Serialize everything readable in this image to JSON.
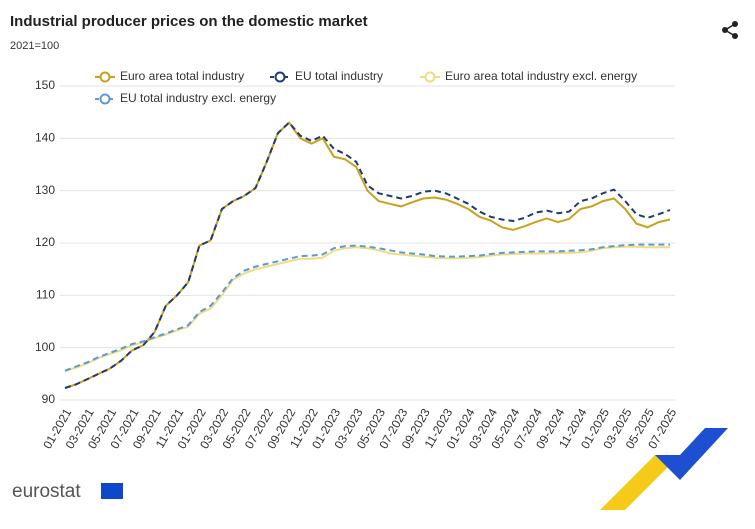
{
  "chart_data": {
    "type": "line",
    "title": "Industrial producer prices on the domestic market",
    "subtitle": "2021=100",
    "logo": "eurostat",
    "categories": [
      "01-2021",
      null,
      "03-2021",
      null,
      "05-2021",
      null,
      "07-2021",
      null,
      "09-2021",
      null,
      "11-2021",
      null,
      "01-2022",
      null,
      "03-2022",
      null,
      "05-2022",
      null,
      "07-2022",
      null,
      "09-2022",
      null,
      "11-2022",
      null,
      "01-2023",
      null,
      "03-2023",
      null,
      "05-2023",
      null,
      "07-2023",
      null,
      "09-2023",
      null,
      "11-2023",
      null,
      "01-2024",
      null,
      "03-2024",
      null,
      "05-2024",
      null,
      "07-2024",
      null,
      "09-2024",
      null,
      "11-2024",
      null,
      "01-2025",
      null,
      "03-2025",
      null,
      "05-2025",
      null,
      "07-2025"
    ],
    "series": [
      {
        "name": "Euro area total industry",
        "color": "#c9a21c",
        "dashed": false,
        "values": [
          92.3,
          93,
          94,
          95,
          96,
          97.5,
          99.5,
          100.5,
          103,
          108,
          110,
          112.5,
          119.5,
          120.5,
          126.5,
          128,
          129,
          130.5,
          135.5,
          141,
          143,
          140,
          139,
          140,
          136.5,
          136,
          134.5,
          130,
          128,
          127.5,
          127,
          127.8,
          128.5,
          128.7,
          128.3,
          127.5,
          126.5,
          125,
          124.3,
          123,
          122.5,
          123.2,
          124,
          124.7,
          124,
          124.6,
          126.5,
          127,
          128,
          128.5,
          126.5,
          123.7,
          123,
          124,
          124.5
        ]
      },
      {
        "name": "EU total industry",
        "color": "#1f3b73",
        "dashed": true,
        "values": [
          92.3,
          93,
          94,
          95,
          96,
          97.5,
          99.5,
          100.5,
          103,
          108,
          110,
          112.5,
          119.5,
          120.5,
          126.5,
          128,
          129,
          130.5,
          135.5,
          141,
          143,
          140.5,
          139.5,
          140.5,
          138,
          137,
          135.5,
          131,
          129.5,
          129,
          128.5,
          129,
          129.8,
          130,
          129.5,
          128.5,
          127.5,
          126,
          125,
          124.5,
          124.2,
          124.8,
          125.8,
          126.2,
          125.7,
          126,
          128,
          128.5,
          129.5,
          130.2,
          128,
          125.5,
          124.8,
          125.5,
          126.3
        ]
      },
      {
        "name": "Euro area total industry excl. energy",
        "color": "#f0dc82",
        "dashed": false,
        "values": [
          95.5,
          96.2,
          97,
          98,
          98.8,
          99.5,
          100.5,
          101,
          101.8,
          102.5,
          103.3,
          104,
          106.5,
          107.5,
          110,
          113,
          114.2,
          115,
          115.5,
          116,
          116.5,
          117,
          117,
          117.2,
          118.5,
          119,
          119.2,
          119,
          118.6,
          118,
          117.8,
          117.6,
          117.4,
          117.2,
          117.1,
          117.1,
          117.2,
          117.3,
          117.6,
          117.8,
          117.9,
          118,
          118,
          118,
          118.1,
          118.1,
          118.2,
          118.5,
          119,
          119.2,
          119.3,
          119.3,
          119.2,
          119.2,
          119.2
        ]
      },
      {
        "name": "EU total industry excl. energy",
        "color": "#5b9bd5",
        "dashed": true,
        "values": [
          95.6,
          96.4,
          97.2,
          98.2,
          99,
          99.8,
          100.7,
          101.2,
          102,
          102.7,
          103.5,
          104.3,
          106.8,
          108,
          110.5,
          113.3,
          114.7,
          115.5,
          116,
          116.5,
          117,
          117.5,
          117.6,
          117.8,
          119,
          119.4,
          119.5,
          119.3,
          119,
          118.6,
          118.2,
          118,
          117.8,
          117.5,
          117.4,
          117.4,
          117.5,
          117.6,
          117.9,
          118.1,
          118.2,
          118.3,
          118.4,
          118.4,
          118.4,
          118.5,
          118.6,
          118.8,
          119.2,
          119.4,
          119.6,
          119.7,
          119.7,
          119.7,
          119.7
        ]
      }
    ],
    "ylim": [
      90,
      150
    ],
    "yticks": [
      90,
      100,
      110,
      120,
      130,
      140,
      150
    ],
    "grid": true
  }
}
